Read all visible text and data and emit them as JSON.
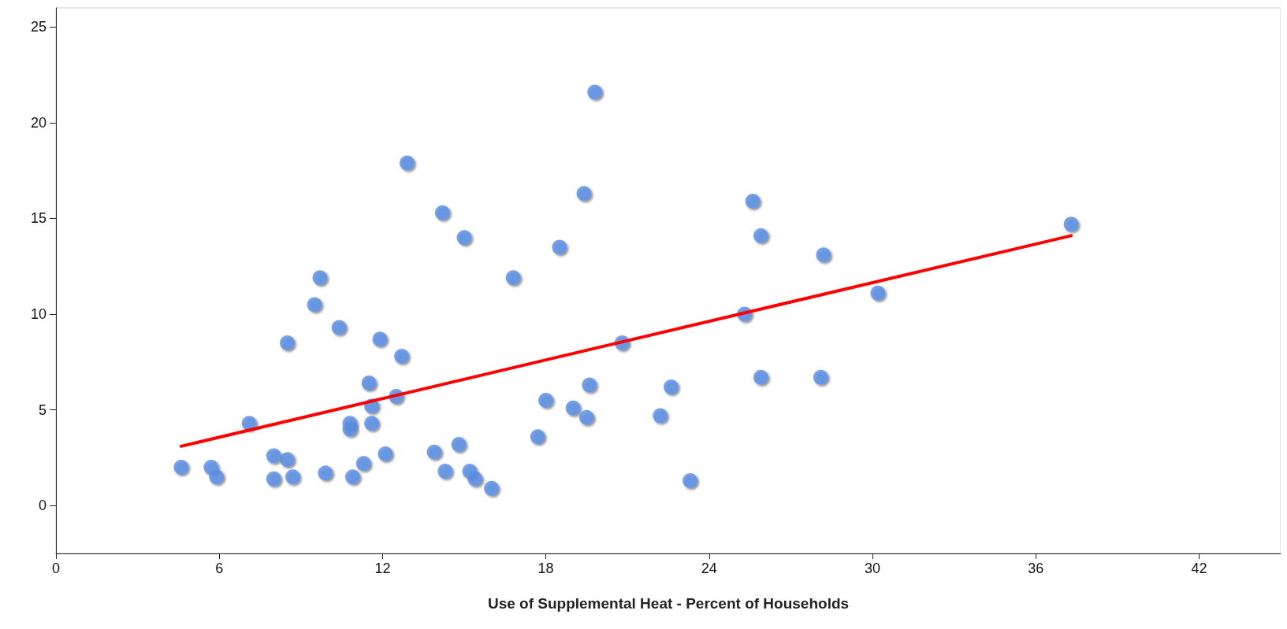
{
  "chart_data": {
    "type": "scatter",
    "xlabel": "Use of Supplemental Heat - Percent of Households",
    "xlim": [
      0,
      45
    ],
    "xticks": [
      0,
      6,
      12,
      18,
      24,
      30,
      36,
      42
    ],
    "ylim": [
      -2.5,
      26
    ],
    "yticks": [
      0,
      5,
      10,
      15,
      20,
      25
    ],
    "grid": false,
    "marker": "circle",
    "series": [
      {
        "color": "#5b8ee6",
        "x": [
          4.6,
          5.7,
          5.9,
          7.1,
          8.0,
          8.0,
          8.5,
          8.7,
          8.5,
          9.5,
          9.7,
          9.9,
          10.4,
          10.8,
          10.8,
          10.9,
          11.3,
          11.5,
          11.6,
          11.6,
          11.9,
          12.1,
          12.5,
          12.7,
          12.9,
          13.9,
          14.2,
          14.3,
          14.8,
          15.0,
          15.2,
          15.4,
          16.0,
          16.8,
          17.7,
          18.0,
          18.5,
          19.0,
          19.4,
          19.5,
          19.6,
          19.8,
          20.8,
          22.2,
          22.6,
          23.3,
          25.3,
          25.6,
          25.9,
          25.9,
          28.1,
          28.2,
          30.2,
          37.3
        ],
        "values": [
          2.0,
          2.0,
          1.5,
          4.3,
          2.6,
          1.4,
          2.4,
          1.5,
          8.5,
          10.5,
          11.9,
          1.7,
          9.3,
          4.3,
          4.0,
          1.5,
          2.2,
          6.4,
          5.2,
          4.3,
          8.7,
          2.7,
          5.7,
          7.8,
          17.9,
          2.8,
          15.3,
          1.8,
          3.2,
          14.0,
          1.8,
          1.4,
          0.9,
          11.9,
          3.6,
          5.5,
          13.5,
          5.1,
          16.3,
          4.6,
          6.3,
          21.6,
          8.5,
          4.7,
          6.2,
          1.3,
          10.0,
          15.9,
          14.1,
          6.7,
          6.7,
          13.1,
          11.1,
          14.7
        ]
      },
      {
        "type": "line",
        "color": "#ff0000",
        "marker": "none",
        "line_style": "solid",
        "x": [
          4.6,
          37.3
        ],
        "values": [
          3.1,
          14.1
        ]
      }
    ]
  }
}
